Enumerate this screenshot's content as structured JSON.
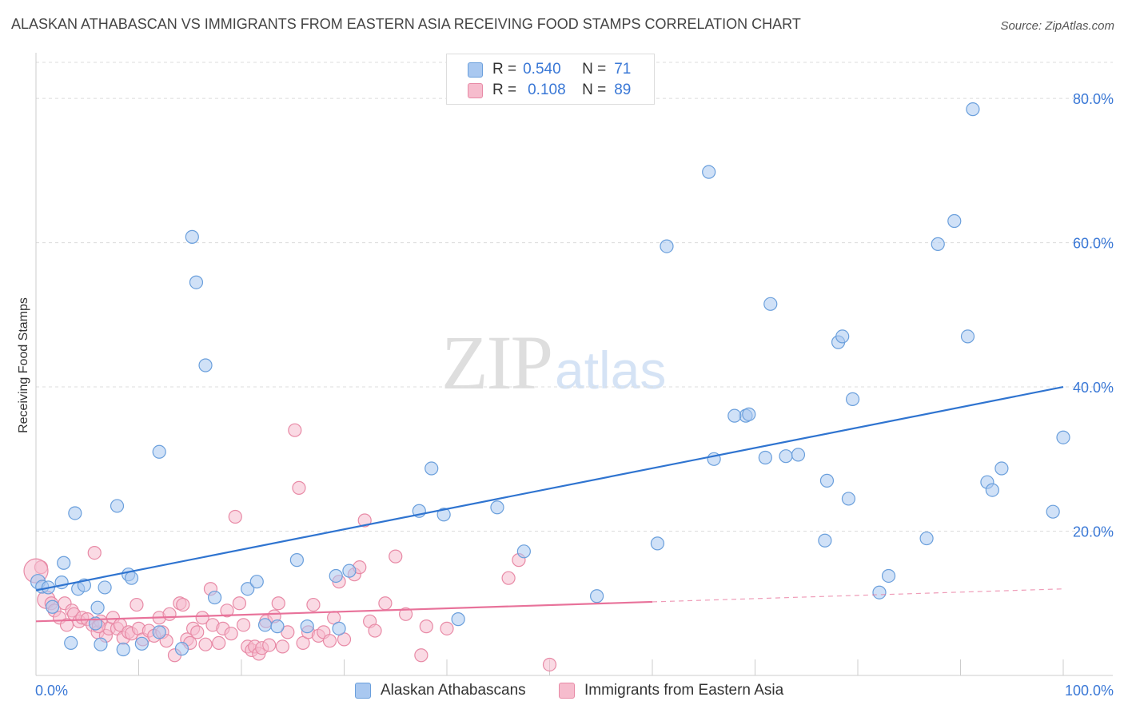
{
  "title": "ALASKAN ATHABASCAN VS IMMIGRANTS FROM EASTERN ASIA RECEIVING FOOD STAMPS CORRELATION CHART",
  "source": "Source: ZipAtlas.com",
  "watermark": {
    "zip": "ZIP",
    "atlas": "atlas"
  },
  "legend": {
    "r_label": "R =",
    "n_label": "N =",
    "rows": [
      {
        "r": "0.540",
        "n": "71"
      },
      {
        "r": "0.108",
        "n": "89"
      }
    ]
  },
  "chart_data": {
    "type": "scatter",
    "title": "ALASKAN ATHABASCAN VS IMMIGRANTS FROM EASTERN ASIA RECEIVING FOOD STAMPS CORRELATION CHART",
    "xlabel": "",
    "ylabel": "Receiving Food Stamps",
    "xlim": [
      0,
      100
    ],
    "ylim": [
      0,
      85
    ],
    "x_tick_labels": [
      "0.0%",
      "100.0%"
    ],
    "y_ticks": [
      20,
      40,
      60,
      80
    ],
    "y_tick_labels": [
      "20.0%",
      "40.0%",
      "60.0%",
      "80.0%"
    ],
    "grid": true,
    "colors": {
      "blue_fill": "#a9c8f0",
      "blue_stroke": "#6a9fdc",
      "blue_line": "#2f74d0",
      "pink_fill": "#f6bccd",
      "pink_stroke": "#e88aa6",
      "pink_line": "#e8729a",
      "axis_label": "#3a78d6"
    },
    "series": [
      {
        "name": "Alaskan Athabascans",
        "r": 0.54,
        "n": 71,
        "trend": {
          "x0": 0,
          "y0": 11.8,
          "x1": 100,
          "y1": 40.0
        },
        "points": [
          [
            0.2,
            13.0
          ],
          [
            0.6,
            12.3
          ],
          [
            1.2,
            12.2
          ],
          [
            1.6,
            9.5
          ],
          [
            2.5,
            12.9
          ],
          [
            2.7,
            15.6
          ],
          [
            3.4,
            4.5
          ],
          [
            3.8,
            22.5
          ],
          [
            4.1,
            12.0
          ],
          [
            4.7,
            12.5
          ],
          [
            5.8,
            7.2
          ],
          [
            6.0,
            9.4
          ],
          [
            6.3,
            4.3
          ],
          [
            6.7,
            12.2
          ],
          [
            7.9,
            23.5
          ],
          [
            8.5,
            3.6
          ],
          [
            9.0,
            14.0
          ],
          [
            9.3,
            13.5
          ],
          [
            10.3,
            4.4
          ],
          [
            12.0,
            31.0
          ],
          [
            12.0,
            6.0
          ],
          [
            14.2,
            3.7
          ],
          [
            15.2,
            60.8
          ],
          [
            15.6,
            54.5
          ],
          [
            16.5,
            43.0
          ],
          [
            17.4,
            10.8
          ],
          [
            20.6,
            12.0
          ],
          [
            21.5,
            13.0
          ],
          [
            22.3,
            7.0
          ],
          [
            23.5,
            6.8
          ],
          [
            25.4,
            16.0
          ],
          [
            26.4,
            6.8
          ],
          [
            29.2,
            13.8
          ],
          [
            29.5,
            6.5
          ],
          [
            30.5,
            14.5
          ],
          [
            37.3,
            22.8
          ],
          [
            38.5,
            28.7
          ],
          [
            39.7,
            22.3
          ],
          [
            41.1,
            7.8
          ],
          [
            44.9,
            23.3
          ],
          [
            47.5,
            17.2
          ],
          [
            54.6,
            11.0
          ],
          [
            60.5,
            18.3
          ],
          [
            61.4,
            59.5
          ],
          [
            65.5,
            69.8
          ],
          [
            66.0,
            30.0
          ],
          [
            69.1,
            36.0
          ],
          [
            69.4,
            36.2
          ],
          [
            71.0,
            30.2
          ],
          [
            71.5,
            51.5
          ],
          [
            73.0,
            30.4
          ],
          [
            74.2,
            30.6
          ],
          [
            76.8,
            18.7
          ],
          [
            77.0,
            27.0
          ],
          [
            78.1,
            46.2
          ],
          [
            78.5,
            47.0
          ],
          [
            79.1,
            24.5
          ],
          [
            79.5,
            38.3
          ],
          [
            82.1,
            11.5
          ],
          [
            83.0,
            13.8
          ],
          [
            86.7,
            19.0
          ],
          [
            87.8,
            59.8
          ],
          [
            89.4,
            63.0
          ],
          [
            90.7,
            47.0
          ],
          [
            91.2,
            78.5
          ],
          [
            92.6,
            26.8
          ],
          [
            93.1,
            25.7
          ],
          [
            94.0,
            28.7
          ],
          [
            99.0,
            22.7
          ],
          [
            100.0,
            33.0
          ],
          [
            68.0,
            36.0
          ]
        ]
      },
      {
        "name": "Immigrants from Eastern Asia",
        "r": 0.108,
        "n": 89,
        "trend_solid": {
          "x0": 0,
          "y0": 7.5,
          "x1": 60,
          "y1": 10.2
        },
        "trend_dashed": {
          "x0": 60,
          "y0": 10.2,
          "x1": 100,
          "y1": 12.0
        },
        "points": [
          [
            0.5,
            15.0
          ],
          [
            1.0,
            10.5
          ],
          [
            1.5,
            10.0
          ],
          [
            1.8,
            9.0
          ],
          [
            2.3,
            8.0
          ],
          [
            2.8,
            10.0
          ],
          [
            3.0,
            7.0
          ],
          [
            3.5,
            9.0
          ],
          [
            3.7,
            8.5
          ],
          [
            4.2,
            7.5
          ],
          [
            4.5,
            8.0
          ],
          [
            5.0,
            7.8
          ],
          [
            5.5,
            7.0
          ],
          [
            5.7,
            17.0
          ],
          [
            6.0,
            6.0
          ],
          [
            6.3,
            7.5
          ],
          [
            6.8,
            5.5
          ],
          [
            7.1,
            6.5
          ],
          [
            7.5,
            8.0
          ],
          [
            7.9,
            6.5
          ],
          [
            8.2,
            7.0
          ],
          [
            8.5,
            5.2
          ],
          [
            9.0,
            6.0
          ],
          [
            9.3,
            5.8
          ],
          [
            9.8,
            9.8
          ],
          [
            10.0,
            6.5
          ],
          [
            10.4,
            5.0
          ],
          [
            11.0,
            6.2
          ],
          [
            11.5,
            5.5
          ],
          [
            12.0,
            8.0
          ],
          [
            12.3,
            6.0
          ],
          [
            12.7,
            4.8
          ],
          [
            13.0,
            8.5
          ],
          [
            13.5,
            2.8
          ],
          [
            14.0,
            10.0
          ],
          [
            14.3,
            9.8
          ],
          [
            14.7,
            5.0
          ],
          [
            15.0,
            4.5
          ],
          [
            15.3,
            6.5
          ],
          [
            15.7,
            6.0
          ],
          [
            16.2,
            8.0
          ],
          [
            16.5,
            4.3
          ],
          [
            17.0,
            12.0
          ],
          [
            17.2,
            7.0
          ],
          [
            17.8,
            4.5
          ],
          [
            18.2,
            6.5
          ],
          [
            18.6,
            9.0
          ],
          [
            19.0,
            5.8
          ],
          [
            19.4,
            22.0
          ],
          [
            19.8,
            10.0
          ],
          [
            20.2,
            7.0
          ],
          [
            20.6,
            4.0
          ],
          [
            21.0,
            3.5
          ],
          [
            21.3,
            4.0
          ],
          [
            21.7,
            3.0
          ],
          [
            22.0,
            3.8
          ],
          [
            22.4,
            7.5
          ],
          [
            22.7,
            4.2
          ],
          [
            23.2,
            8.2
          ],
          [
            23.6,
            10.0
          ],
          [
            24.0,
            4.0
          ],
          [
            24.5,
            6.0
          ],
          [
            25.2,
            34.0
          ],
          [
            25.6,
            26.0
          ],
          [
            26.0,
            4.5
          ],
          [
            26.5,
            6.0
          ],
          [
            27.0,
            9.8
          ],
          [
            27.5,
            5.5
          ],
          [
            28.0,
            6.0
          ],
          [
            28.6,
            4.8
          ],
          [
            29.0,
            8.0
          ],
          [
            29.5,
            13.0
          ],
          [
            30.0,
            5.0
          ],
          [
            31.0,
            14.0
          ],
          [
            31.5,
            15.0
          ],
          [
            32.0,
            21.5
          ],
          [
            32.5,
            7.5
          ],
          [
            33.0,
            6.2
          ],
          [
            34.0,
            10.0
          ],
          [
            35.0,
            16.5
          ],
          [
            36.0,
            8.5
          ],
          [
            37.5,
            2.8
          ],
          [
            38.0,
            6.8
          ],
          [
            40.0,
            6.5
          ],
          [
            46.0,
            13.5
          ],
          [
            47.0,
            16.0
          ],
          [
            50.0,
            1.5
          ],
          [
            0.0,
            14.5
          ],
          [
            6.1,
            6.8
          ]
        ]
      }
    ]
  },
  "bottom_legend": {
    "items": [
      "Alaskan Athabascans",
      "Immigrants from Eastern Asia"
    ]
  }
}
